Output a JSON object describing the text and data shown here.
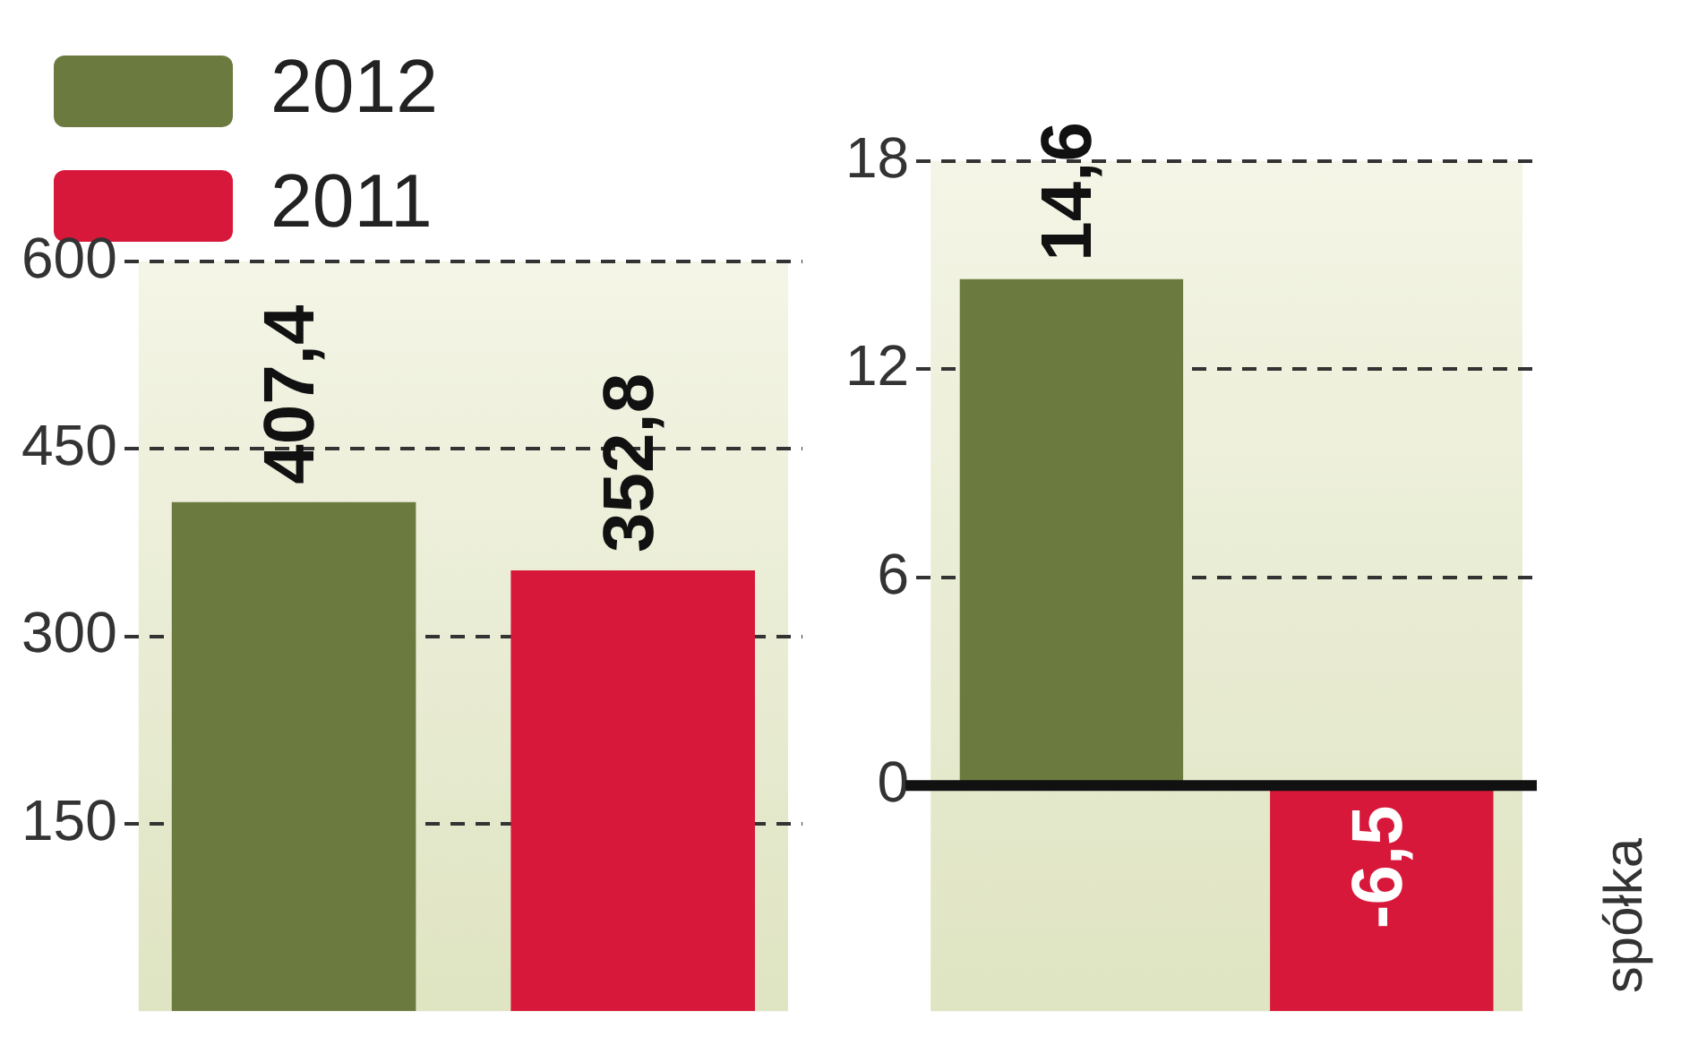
{
  "chart_data": [
    {
      "type": "bar",
      "categories": [
        null
      ],
      "series": [
        {
          "name": "2012",
          "color": "#6b7a3f",
          "values": [
            407.4
          ],
          "value_labels": [
            "407,4"
          ]
        },
        {
          "name": "2011",
          "color": "#d8183a",
          "values": [
            352.8
          ],
          "value_labels": [
            "352,8"
          ]
        }
      ],
      "ylim": [
        0,
        600
      ],
      "yticks": [
        150,
        300,
        450,
        600
      ],
      "grid": "y",
      "legend": "top left"
    },
    {
      "type": "bar",
      "categories": [
        null
      ],
      "series": [
        {
          "color": "#6b7a3f",
          "values": [
            14.6
          ],
          "value_labels": [
            "14,6"
          ]
        },
        {
          "color": "#d8183a",
          "values": [
            -6.5
          ],
          "value_labels": [
            "-6,5"
          ]
        }
      ],
      "ylim": [
        -6.5,
        18
      ],
      "yticks": [
        0,
        6,
        12,
        18
      ],
      "grid": "y",
      "annotations": [
        "spółka"
      ]
    }
  ]
}
